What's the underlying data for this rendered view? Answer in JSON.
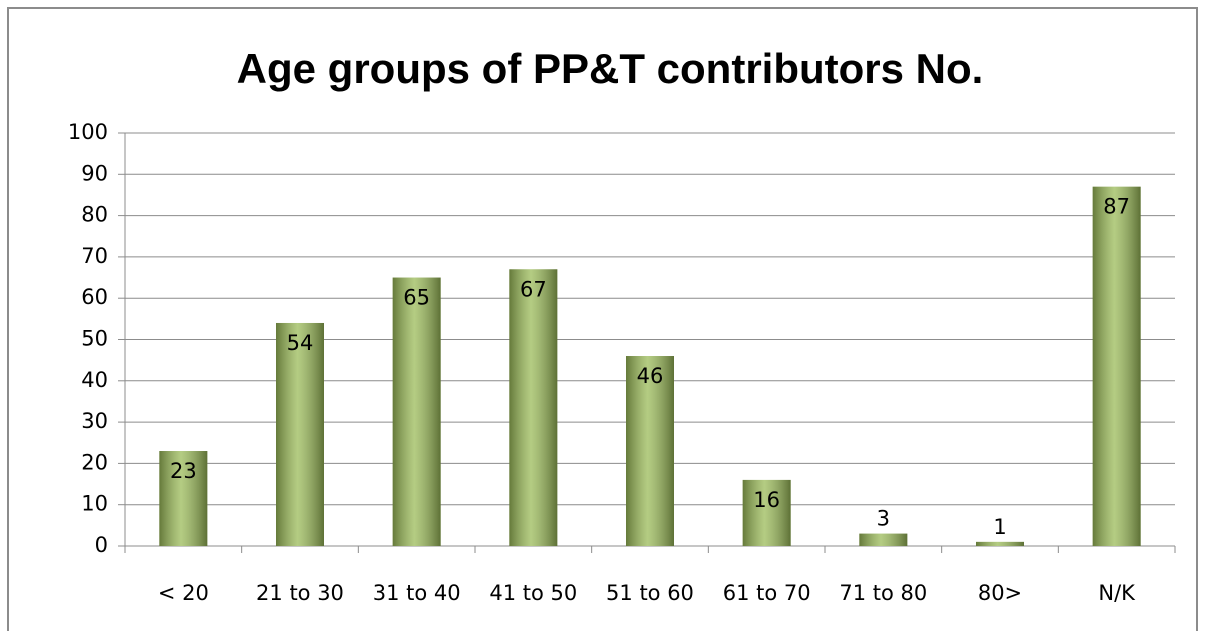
{
  "chart_data": {
    "type": "bar",
    "title": "Age groups of PP&T contributors No.",
    "categories": [
      "< 20",
      "21 to 30",
      "31 to 40",
      "41 to 50",
      "51 to 60",
      "61 to 70",
      "71 to 80",
      "80>",
      "N/K"
    ],
    "values": [
      23,
      54,
      65,
      67,
      46,
      16,
      3,
      1,
      87
    ],
    "color": "#9bbb59",
    "ylim": [
      0,
      100
    ],
    "yticks": [
      0,
      10,
      20,
      30,
      40,
      50,
      60,
      70,
      80,
      90,
      100
    ],
    "grid": true
  }
}
